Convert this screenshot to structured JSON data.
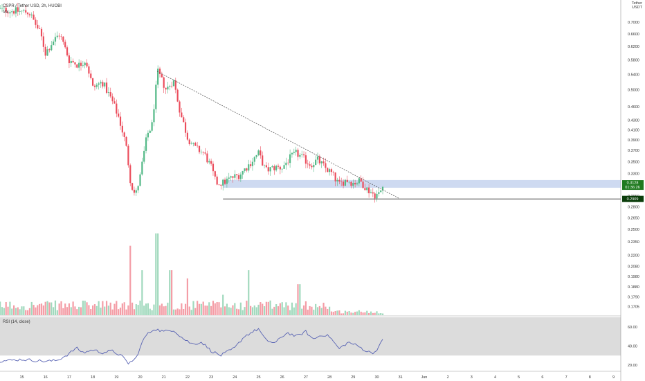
{
  "header": {
    "symbol_line": "CSPR / Tether USD, 2h, HUOBI",
    "volume_label": "Vol",
    "rsi_label": "RSI (14, close)",
    "currency_line1": "Tether",
    "currency_line2": "USDT"
  },
  "price_axis": {
    "ticks": [
      "0.7000",
      "0.6600",
      "0.6200",
      "0.5800",
      "0.5400",
      "0.5000",
      "0.4600",
      "0.4300",
      "0.4100",
      "0.3900",
      "0.3700",
      "0.3500",
      "0.3300",
      "0.3100",
      "0.2950",
      "0.2800",
      "0.2650",
      "0.2500",
      "0.2350",
      "0.2200",
      "0.2080",
      "0.1980",
      "0.1880",
      "0.1790",
      "0.1705"
    ],
    "last_price_label": "0.3128",
    "countdown_label": "01:36:26",
    "support_label": "0.2909"
  },
  "rsi_axis": {
    "ticks": [
      "60.00",
      "40.00",
      "20.00"
    ]
  },
  "time_axis": {
    "ticks": [
      "15",
      "16",
      "17",
      "18",
      "19",
      "20",
      "21",
      "22",
      "23",
      "24",
      "25",
      "26",
      "27",
      "28",
      "29",
      "30",
      "31",
      "Jun",
      "2",
      "3",
      "4",
      "5",
      "6",
      "7",
      "8",
      "9"
    ]
  },
  "chart_data": {
    "type": "candlestick",
    "timeframe": "2h",
    "y_scale": "log",
    "ylim": [
      0.165,
      0.76
    ],
    "rsi_ylim": [
      15,
      70
    ],
    "last_price": 0.3128,
    "support_level": 0.2909,
    "resistance_zone": [
      0.3075,
      0.3195
    ],
    "trendline": {
      "from": {
        "day": 20.72,
        "price": 0.548
      },
      "to": {
        "day": 30.95,
        "price": 0.2915
      }
    },
    "colors": {
      "up": "#53b987",
      "down": "#eb4d5c",
      "zone": "#c5d4ee",
      "rsi_band": "#dcdcdc",
      "rsi_line": "#5762b3",
      "last_price_bg": "#1f7a1f",
      "support_bg": "#0b3d0b"
    },
    "anchors": [
      [
        14.0,
        0.745
      ],
      [
        14.5,
        0.742
      ],
      [
        15.3,
        0.735
      ],
      [
        15.5,
        0.705
      ],
      [
        15.8,
        0.658
      ],
      [
        16.0,
        0.6
      ],
      [
        16.3,
        0.635
      ],
      [
        16.6,
        0.66
      ],
      [
        17.0,
        0.58
      ],
      [
        17.4,
        0.565
      ],
      [
        17.7,
        0.58
      ],
      [
        18.0,
        0.505
      ],
      [
        18.4,
        0.52
      ],
      [
        18.8,
        0.475
      ],
      [
        19.1,
        0.435
      ],
      [
        19.4,
        0.38
      ],
      [
        19.6,
        0.315
      ],
      [
        19.8,
        0.295
      ],
      [
        20.0,
        0.325
      ],
      [
        20.3,
        0.4
      ],
      [
        20.5,
        0.42
      ],
      [
        20.75,
        0.545
      ],
      [
        21.1,
        0.5
      ],
      [
        21.4,
        0.525
      ],
      [
        21.7,
        0.445
      ],
      [
        22.0,
        0.395
      ],
      [
        22.3,
        0.375
      ],
      [
        22.7,
        0.365
      ],
      [
        23.0,
        0.34
      ],
      [
        23.2,
        0.315
      ],
      [
        23.5,
        0.315
      ],
      [
        23.8,
        0.322
      ],
      [
        24.2,
        0.328
      ],
      [
        24.6,
        0.345
      ],
      [
        25.0,
        0.365
      ],
      [
        25.3,
        0.335
      ],
      [
        25.7,
        0.34
      ],
      [
        26.0,
        0.34
      ],
      [
        26.3,
        0.355
      ],
      [
        26.6,
        0.365
      ],
      [
        26.9,
        0.355
      ],
      [
        27.2,
        0.345
      ],
      [
        27.5,
        0.353
      ],
      [
        27.8,
        0.34
      ],
      [
        28.1,
        0.33
      ],
      [
        28.4,
        0.312
      ],
      [
        28.7,
        0.32
      ],
      [
        29.0,
        0.315
      ],
      [
        29.3,
        0.318
      ],
      [
        29.6,
        0.305
      ],
      [
        29.9,
        0.297
      ],
      [
        30.1,
        0.298
      ],
      [
        30.3,
        0.3128
      ]
    ],
    "volume_spikes": [
      [
        19.6,
        0.85
      ],
      [
        20.1,
        0.55
      ],
      [
        20.7,
        1.0
      ],
      [
        21.3,
        0.55
      ],
      [
        22.0,
        0.45
      ],
      [
        24.6,
        0.55
      ],
      [
        26.7,
        0.38
      ],
      [
        23.5,
        0.25
      ]
    ],
    "rsi_anchors": [
      [
        14.0,
        24
      ],
      [
        15.0,
        26
      ],
      [
        16.0,
        24
      ],
      [
        16.5,
        25
      ],
      [
        17.0,
        32
      ],
      [
        17.3,
        38
      ],
      [
        17.6,
        33
      ],
      [
        18.0,
        36
      ],
      [
        18.4,
        33
      ],
      [
        18.8,
        35
      ],
      [
        19.2,
        30
      ],
      [
        19.5,
        22
      ],
      [
        19.8,
        26
      ],
      [
        20.2,
        50
      ],
      [
        20.6,
        58
      ],
      [
        21.0,
        55
      ],
      [
        21.4,
        57
      ],
      [
        21.8,
        48
      ],
      [
        22.2,
        42
      ],
      [
        22.6,
        44
      ],
      [
        23.0,
        35
      ],
      [
        23.4,
        30
      ],
      [
        23.7,
        34
      ],
      [
        24.0,
        38
      ],
      [
        24.4,
        50
      ],
      [
        25.0,
        58
      ],
      [
        25.3,
        46
      ],
      [
        25.7,
        43
      ],
      [
        26.2,
        54
      ],
      [
        26.6,
        50
      ],
      [
        27.0,
        55
      ],
      [
        27.3,
        47
      ],
      [
        27.7,
        52
      ],
      [
        28.0,
        50
      ],
      [
        28.4,
        37
      ],
      [
        28.8,
        44
      ],
      [
        29.2,
        40
      ],
      [
        29.6,
        34
      ],
      [
        29.9,
        33
      ],
      [
        30.1,
        40
      ],
      [
        30.3,
        48
      ]
    ]
  }
}
